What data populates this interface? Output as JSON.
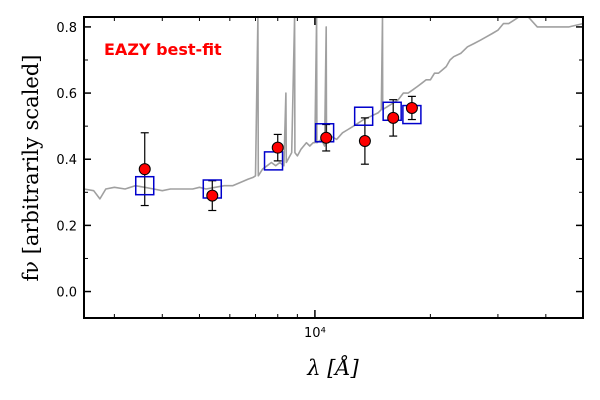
{
  "chart_data": {
    "type": "scatter",
    "annotation": "EAZY best-fit",
    "xlabel": "λ [Å]",
    "ylabel": "fν [arbitrarily scaled]",
    "x_scale": "log",
    "xlim": [
      2500,
      50000
    ],
    "ylim": [
      -0.08,
      0.83
    ],
    "x_ticks": [
      {
        "value": 10000,
        "label": "10⁴"
      }
    ],
    "y_ticks": [
      {
        "value": 0.0,
        "label": "0.0"
      },
      {
        "value": 0.2,
        "label": "0.2"
      },
      {
        "value": 0.4,
        "label": "0.4"
      },
      {
        "value": 0.6,
        "label": "0.6"
      },
      {
        "value": 0.8,
        "label": "0.8"
      }
    ],
    "grid": false,
    "colors": {
      "observed": "#ff0000",
      "model_photometry": "#0000cc",
      "model_spectrum": "#a0a0a0"
    },
    "observed": [
      {
        "x": 3600,
        "y": 0.37,
        "err_low": 0.11,
        "err_high": 0.11
      },
      {
        "x": 5400,
        "y": 0.29,
        "err_low": 0.045,
        "err_high": 0.045
      },
      {
        "x": 8000,
        "y": 0.435,
        "err_low": 0.04,
        "err_high": 0.04
      },
      {
        "x": 10700,
        "y": 0.465,
        "err_low": 0.04,
        "err_high": 0.04
      },
      {
        "x": 13500,
        "y": 0.455,
        "err_low": 0.07,
        "err_high": 0.07
      },
      {
        "x": 16000,
        "y": 0.525,
        "err_low": 0.055,
        "err_high": 0.055
      },
      {
        "x": 17900,
        "y": 0.555,
        "err_low": 0.035,
        "err_high": 0.035
      }
    ],
    "model_photometry": [
      {
        "x": 3600,
        "y": 0.32
      },
      {
        "x": 5400,
        "y": 0.31
      },
      {
        "x": 7800,
        "y": 0.395
      },
      {
        "x": 10600,
        "y": 0.48
      },
      {
        "x": 13400,
        "y": 0.53
      },
      {
        "x": 15900,
        "y": 0.545
      },
      {
        "x": 17900,
        "y": 0.535
      }
    ],
    "model_spectrum": [
      [
        2500,
        0.31
      ],
      [
        2650,
        0.305
      ],
      [
        2750,
        0.28
      ],
      [
        2850,
        0.31
      ],
      [
        3000,
        0.315
      ],
      [
        3200,
        0.31
      ],
      [
        3400,
        0.32
      ],
      [
        3600,
        0.315
      ],
      [
        3800,
        0.31
      ],
      [
        4000,
        0.305
      ],
      [
        4200,
        0.31
      ],
      [
        4500,
        0.31
      ],
      [
        4800,
        0.31
      ],
      [
        5000,
        0.315
      ],
      [
        5200,
        0.31
      ],
      [
        5500,
        0.315
      ],
      [
        5800,
        0.32
      ],
      [
        6100,
        0.32
      ],
      [
        6400,
        0.33
      ],
      [
        6700,
        0.34
      ],
      [
        6900,
        0.345
      ],
      [
        7000,
        0.35
      ],
      [
        7100,
        0.83
      ],
      [
        7120,
        0.35
      ],
      [
        7300,
        0.37
      ],
      [
        7500,
        0.38
      ],
      [
        7700,
        0.39
      ],
      [
        7900,
        0.38
      ],
      [
        8100,
        0.39
      ],
      [
        8300,
        0.38
      ],
      [
        8400,
        0.6
      ],
      [
        8420,
        0.39
      ],
      [
        8700,
        0.42
      ],
      [
        8850,
        0.83
      ],
      [
        8870,
        0.42
      ],
      [
        9000,
        0.41
      ],
      [
        9200,
        0.43
      ],
      [
        9500,
        0.45
      ],
      [
        9700,
        0.44
      ],
      [
        9900,
        0.45
      ],
      [
        10000,
        0.45
      ],
      [
        10100,
        0.83
      ],
      [
        10120,
        0.45
      ],
      [
        10400,
        0.46
      ],
      [
        10600,
        0.44
      ],
      [
        10700,
        0.8
      ],
      [
        10720,
        0.46
      ],
      [
        11000,
        0.47
      ],
      [
        11400,
        0.46
      ],
      [
        11800,
        0.48
      ],
      [
        12200,
        0.49
      ],
      [
        12600,
        0.5
      ],
      [
        13000,
        0.51
      ],
      [
        13400,
        0.52
      ],
      [
        14000,
        0.53
      ],
      [
        14600,
        0.54
      ],
      [
        14900,
        0.55
      ],
      [
        15000,
        0.83
      ],
      [
        15020,
        0.55
      ],
      [
        15500,
        0.56
      ],
      [
        16000,
        0.57
      ],
      [
        16500,
        0.58
      ],
      [
        17000,
        0.6
      ],
      [
        17500,
        0.6
      ],
      [
        18000,
        0.61
      ],
      [
        18500,
        0.62
      ],
      [
        19000,
        0.63
      ],
      [
        19500,
        0.64
      ],
      [
        20000,
        0.64
      ],
      [
        20500,
        0.66
      ],
      [
        21000,
        0.66
      ],
      [
        21500,
        0.67
      ],
      [
        22000,
        0.68
      ],
      [
        22500,
        0.7
      ],
      [
        23000,
        0.71
      ],
      [
        24000,
        0.72
      ],
      [
        25000,
        0.74
      ],
      [
        26000,
        0.75
      ],
      [
        27000,
        0.76
      ],
      [
        28000,
        0.77
      ],
      [
        29000,
        0.78
      ],
      [
        30000,
        0.79
      ],
      [
        31000,
        0.81
      ],
      [
        32000,
        0.81
      ],
      [
        33000,
        0.82
      ],
      [
        34000,
        0.83
      ],
      [
        36000,
        0.83
      ],
      [
        38000,
        0.8
      ],
      [
        40000,
        0.8
      ],
      [
        43000,
        0.8
      ],
      [
        46000,
        0.8
      ],
      [
        50000,
        0.81
      ]
    ]
  }
}
